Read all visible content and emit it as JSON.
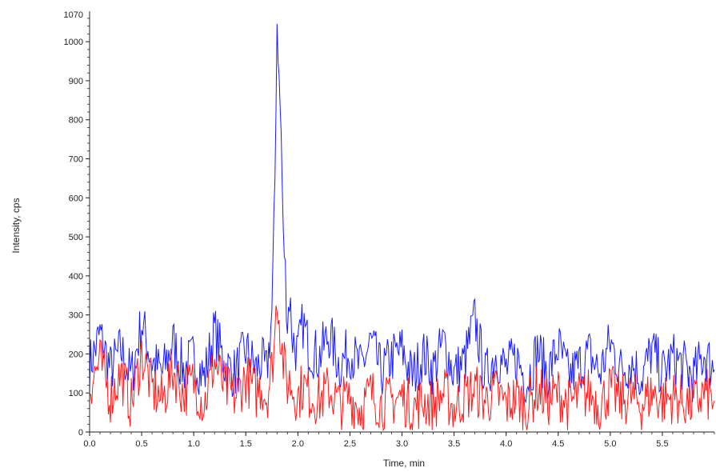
{
  "chart_data": {
    "type": "line",
    "xlabel": "Time, min",
    "ylabel": "Intensity, cps",
    "xlim": [
      0.0,
      6.0
    ],
    "ylim": [
      0,
      1070
    ],
    "x_ticks": [
      "0.0",
      "0.5",
      "1.0",
      "1.5",
      "2.0",
      "2.5",
      "3.0",
      "3.5",
      "4.0",
      "4.5",
      "5.0",
      "5.5"
    ],
    "x_tick_values": [
      0.0,
      0.5,
      1.0,
      1.5,
      2.0,
      2.5,
      3.0,
      3.5,
      4.0,
      4.5,
      5.0,
      5.5
    ],
    "y_ticks": [
      "0",
      "100",
      "200",
      "300",
      "400",
      "500",
      "600",
      "700",
      "800",
      "900",
      "1000"
    ],
    "y_tick_values": [
      0,
      100,
      200,
      300,
      400,
      500,
      600,
      700,
      800,
      900,
      1000
    ],
    "y_max_label": "1070",
    "grid": false,
    "series": [
      {
        "color": "#1a1aff",
        "x": [
          0.0,
          0.1,
          0.2,
          0.3,
          0.4,
          0.5,
          0.6,
          0.7,
          0.8,
          0.9,
          1.0,
          1.1,
          1.2,
          1.3,
          1.4,
          1.5,
          1.6,
          1.65,
          1.7,
          1.75,
          1.78,
          1.8,
          1.82,
          1.84,
          1.86,
          1.88,
          1.9,
          1.92,
          1.95,
          2.0,
          2.05,
          2.1,
          2.2,
          2.3,
          2.4,
          2.5,
          2.6,
          2.7,
          2.8,
          2.9,
          3.0,
          3.1,
          3.2,
          3.3,
          3.4,
          3.5,
          3.6,
          3.7,
          3.8,
          3.9,
          4.0,
          4.1,
          4.2,
          4.3,
          4.4,
          4.5,
          4.6,
          4.7,
          4.8,
          4.9,
          5.0,
          5.1,
          5.2,
          5.3,
          5.4,
          5.5,
          5.6,
          5.7,
          5.8,
          5.9,
          6.0
        ],
        "y": [
          170,
          250,
          160,
          210,
          140,
          280,
          180,
          150,
          230,
          160,
          190,
          140,
          260,
          170,
          150,
          210,
          160,
          180,
          150,
          300,
          650,
          1050,
          900,
          760,
          500,
          420,
          280,
          350,
          240,
          200,
          280,
          220,
          190,
          250,
          170,
          210,
          160,
          230,
          150,
          190,
          210,
          140,
          200,
          160,
          230,
          150,
          180,
          290,
          140,
          200,
          160,
          190,
          130,
          210,
          150,
          220,
          140,
          170,
          200,
          150,
          230,
          160,
          180,
          140,
          210,
          150,
          190,
          170,
          140,
          200,
          160
        ]
      },
      {
        "color": "#ff1a1a",
        "x": [
          0.0,
          0.1,
          0.2,
          0.3,
          0.4,
          0.5,
          0.6,
          0.7,
          0.8,
          0.9,
          1.0,
          1.1,
          1.2,
          1.3,
          1.4,
          1.5,
          1.6,
          1.65,
          1.7,
          1.75,
          1.78,
          1.8,
          1.82,
          1.84,
          1.86,
          1.88,
          1.9,
          1.92,
          1.95,
          2.0,
          2.05,
          2.1,
          2.2,
          2.3,
          2.4,
          2.5,
          2.6,
          2.7,
          2.8,
          2.9,
          3.0,
          3.1,
          3.2,
          3.3,
          3.4,
          3.5,
          3.6,
          3.7,
          3.8,
          3.9,
          4.0,
          4.1,
          4.2,
          4.3,
          4.4,
          4.5,
          4.6,
          4.7,
          4.8,
          4.9,
          5.0,
          5.1,
          5.2,
          5.3,
          5.4,
          5.5,
          5.6,
          5.7,
          5.8,
          5.9,
          6.0
        ],
        "y": [
          120,
          180,
          90,
          150,
          70,
          200,
          110,
          80,
          160,
          100,
          130,
          70,
          180,
          110,
          90,
          140,
          100,
          120,
          90,
          160,
          250,
          360,
          300,
          230,
          180,
          150,
          120,
          130,
          110,
          90,
          120,
          100,
          80,
          110,
          70,
          90,
          60,
          100,
          70,
          80,
          90,
          60,
          80,
          70,
          100,
          60,
          90,
          110,
          80,
          100,
          70,
          90,
          60,
          110,
          80,
          100,
          70,
          90,
          100,
          70,
          110,
          80,
          90,
          70,
          100,
          80,
          90,
          80,
          70,
          100,
          80
        ]
      }
    ]
  }
}
